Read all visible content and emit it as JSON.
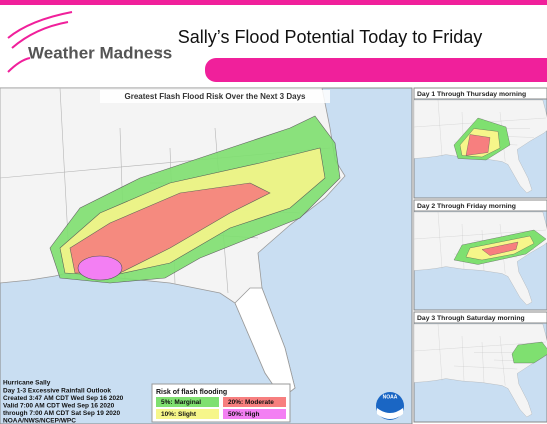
{
  "header": {
    "brand": "Weather Madness",
    "trademark": "TM",
    "title": "Sally’s Flood Potential Today to Friday"
  },
  "main_map": {
    "title": "Greatest Flash Flood Risk Over the Next 3 Days",
    "info": [
      "Hurricane Sally",
      "Day 1-3 Excessive Rainfall Outlook",
      "Created 3:47 AM CDT Wed Sep 16 2020",
      "Valid 7:00 AM CDT Wed Sep 16 2020",
      "through 7:00 AM CDT Sat Sep 19 2020",
      "NOAA/NWS/NCEP/WPC"
    ],
    "legend": {
      "title": "Risk of flash flooding",
      "items": [
        {
          "label": "5%: Marginal",
          "color": "#7fe070"
        },
        {
          "label": "20%: Moderate",
          "color": "#f77f7f"
        },
        {
          "label": "10%: Slight",
          "color": "#f6f68a"
        },
        {
          "label": "50%: High",
          "color": "#f37ff3"
        }
      ]
    },
    "logo": "NOAA"
  },
  "panels": [
    {
      "title": "Day 1 Through Thursday morning"
    },
    {
      "title": "Day 2 Through Friday morning"
    },
    {
      "title": "Day 3 Through Saturday morning"
    }
  ]
}
